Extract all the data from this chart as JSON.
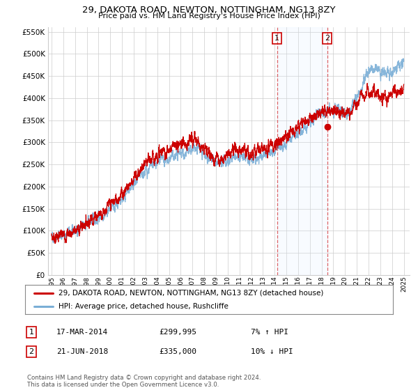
{
  "title": "29, DAKOTA ROAD, NEWTON, NOTTINGHAM, NG13 8ZY",
  "subtitle": "Price paid vs. HM Land Registry's House Price Index (HPI)",
  "hpi_label": "HPI: Average price, detached house, Rushcliffe",
  "property_label": "29, DAKOTA ROAD, NEWTON, NOTTINGHAM, NG13 8ZY (detached house)",
  "transaction1": {
    "date": "17-MAR-2014",
    "price": 299995,
    "hpi_note": "7% ↑ HPI"
  },
  "transaction2": {
    "date": "21-JUN-2018",
    "price": 335000,
    "hpi_note": "10% ↓ HPI"
  },
  "property_color": "#cc0000",
  "hpi_color": "#7aaed6",
  "vline_color": "#cc0000",
  "span_color": "#ddeeff",
  "t1": 2014.21,
  "t2": 2018.47,
  "ylim": [
    0,
    560000
  ],
  "yticks": [
    0,
    50000,
    100000,
    150000,
    200000,
    250000,
    300000,
    350000,
    400000,
    450000,
    500000,
    550000
  ],
  "footnote": "Contains HM Land Registry data © Crown copyright and database right 2024.\nThis data is licensed under the Open Government Licence v3.0.",
  "background_color": "#ffffff",
  "grid_color": "#cccccc",
  "hpi_anchors_years": [
    1995.0,
    1996.0,
    1997.0,
    1997.5,
    1998.0,
    1999.0,
    2000.0,
    2001.0,
    2002.0,
    2003.0,
    2004.0,
    2005.0,
    2005.5,
    2006.0,
    2007.0,
    2007.5,
    2008.0,
    2008.5,
    2009.0,
    2009.5,
    2010.0,
    2010.5,
    2011.0,
    2011.5,
    2012.0,
    2012.5,
    2013.0,
    2013.5,
    2014.0,
    2014.5,
    2015.0,
    2015.5,
    2016.0,
    2016.5,
    2017.0,
    2017.5,
    2018.0,
    2018.5,
    2019.0,
    2019.5,
    2020.0,
    2020.5,
    2021.0,
    2021.5,
    2022.0,
    2022.5,
    2023.0,
    2023.5,
    2024.0,
    2024.5,
    2025.0
  ],
  "hpi_anchors_vals": [
    88000,
    92000,
    100000,
    108000,
    118000,
    132000,
    150000,
    175000,
    205000,
    235000,
    258000,
    265000,
    272000,
    278000,
    282000,
    287000,
    278000,
    262000,
    252000,
    255000,
    262000,
    268000,
    270000,
    267000,
    264000,
    266000,
    272000,
    276000,
    282000,
    290000,
    302000,
    312000,
    320000,
    332000,
    345000,
    358000,
    368000,
    372000,
    378000,
    375000,
    368000,
    378000,
    405000,
    435000,
    460000,
    468000,
    462000,
    455000,
    462000,
    472000,
    480000
  ],
  "prop_anchors_years": [
    1995.0,
    1996.0,
    1997.0,
    1997.5,
    1998.0,
    1999.0,
    2000.0,
    2001.0,
    2002.0,
    2003.0,
    2004.0,
    2005.0,
    2005.5,
    2006.0,
    2007.0,
    2007.5,
    2008.0,
    2008.5,
    2009.0,
    2009.5,
    2010.0,
    2010.5,
    2011.0,
    2011.5,
    2012.0,
    2012.5,
    2013.0,
    2013.5,
    2014.0,
    2014.5,
    2015.0,
    2015.5,
    2016.0,
    2016.5,
    2017.0,
    2017.5,
    2018.0,
    2018.5,
    2019.0,
    2019.5,
    2020.0,
    2020.5,
    2021.0,
    2021.5,
    2022.0,
    2022.5,
    2023.0,
    2023.5,
    2024.0,
    2024.5,
    2025.0
  ],
  "prop_anchors_vals": [
    93000,
    97000,
    106000,
    116000,
    128000,
    144000,
    165000,
    192000,
    225000,
    255000,
    280000,
    288000,
    298000,
    305000,
    310000,
    308000,
    295000,
    278000,
    270000,
    273000,
    282000,
    290000,
    293000,
    288000,
    283000,
    287000,
    293000,
    295000,
    300000,
    308000,
    318000,
    328000,
    338000,
    350000,
    360000,
    370000,
    378000,
    375000,
    382000,
    378000,
    372000,
    378000,
    398000,
    415000,
    425000,
    418000,
    412000,
    408000,
    415000,
    420000,
    425000
  ]
}
